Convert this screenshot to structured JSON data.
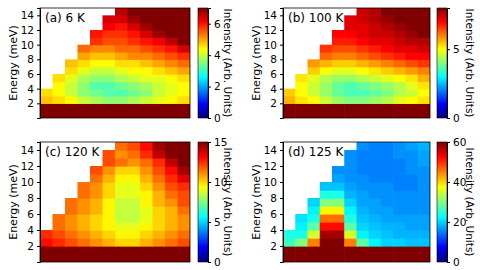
{
  "chart_data": [
    {
      "type": "heatmap",
      "title": "(a) 6 K",
      "y_label": "Energy (meV)",
      "tick_labels": "y",
      "ylim": [
        0,
        15
      ],
      "yticks": [
        2,
        4,
        6,
        8,
        10,
        12,
        14
      ],
      "y_bins": [
        0,
        1,
        2,
        3,
        4,
        5,
        6,
        7,
        8,
        9,
        10,
        11,
        12,
        13,
        14,
        15
      ],
      "colorbar_label": "Intensity (Arb. Units)",
      "colorbar_range": [
        0,
        7
      ],
      "colorbar_ticks": [
        0,
        2,
        4,
        6
      ],
      "cells": [
        [
          12,
          12,
          12,
          12,
          12,
          12,
          12,
          12,
          12,
          12,
          12,
          12
        ],
        [
          12,
          12,
          12,
          12,
          12,
          12,
          12,
          12,
          12,
          12,
          12,
          12
        ],
        [
          4.8,
          4.6,
          4.4,
          4.0,
          3.8,
          3.6,
          3.6,
          3.8,
          4.0,
          4.2,
          4.4,
          4.6
        ],
        [
          4.6,
          4.4,
          4.0,
          3.6,
          3.4,
          3.2,
          3.2,
          3.4,
          3.6,
          4.0,
          4.2,
          4.4
        ],
        [
          null,
          4.4,
          4.0,
          3.6,
          3.2,
          3.2,
          3.4,
          3.6,
          3.8,
          4.0,
          4.2,
          4.4
        ],
        [
          null,
          4.6,
          4.2,
          3.8,
          3.6,
          3.6,
          3.8,
          4.0,
          4.2,
          4.2,
          4.4,
          4.6
        ],
        [
          null,
          null,
          4.6,
          4.2,
          4.0,
          4.0,
          4.2,
          4.4,
          4.4,
          4.6,
          4.8,
          5.0
        ],
        [
          null,
          null,
          4.8,
          4.6,
          4.4,
          4.4,
          4.6,
          4.6,
          4.8,
          5.0,
          5.2,
          5.4
        ],
        [
          null,
          null,
          null,
          5.0,
          4.8,
          4.8,
          5.0,
          5.2,
          5.2,
          5.4,
          5.6,
          5.8
        ],
        [
          null,
          null,
          null,
          5.4,
          5.2,
          5.2,
          5.4,
          5.4,
          5.6,
          5.8,
          6.0,
          6.4
        ],
        [
          null,
          null,
          null,
          null,
          5.8,
          5.6,
          5.6,
          5.8,
          6.0,
          6.2,
          6.6,
          7.0
        ],
        [
          null,
          null,
          null,
          null,
          6.0,
          5.8,
          5.8,
          6.0,
          6.4,
          6.8,
          7.2,
          7.6
        ],
        [
          null,
          null,
          null,
          null,
          null,
          6.2,
          6.0,
          6.4,
          6.8,
          7.4,
          8.0,
          8.5
        ],
        [
          null,
          null,
          null,
          null,
          null,
          6.4,
          6.4,
          6.8,
          7.2,
          7.8,
          8.5,
          9.0
        ],
        [
          null,
          null,
          null,
          null,
          null,
          null,
          6.6,
          7.0,
          7.6,
          8.2,
          9.0,
          9.5
        ]
      ]
    },
    {
      "type": "heatmap",
      "title": "(b) 100 K",
      "y_label": "Energy (meV)",
      "tick_labels": "y",
      "ylim": [
        0,
        15
      ],
      "yticks": [
        2,
        4,
        6,
        8,
        10,
        12,
        14
      ],
      "y_bins": [
        0,
        1,
        2,
        3,
        4,
        5,
        6,
        7,
        8,
        9,
        10,
        11,
        12,
        13,
        14,
        15
      ],
      "colorbar_label": "Intensity (Arb. Units)",
      "colorbar_range": [
        0,
        8
      ],
      "colorbar_ticks": [
        0,
        5
      ],
      "cells": [
        [
          14,
          14,
          14,
          14,
          14,
          14,
          14,
          14,
          14,
          14,
          14,
          14
        ],
        [
          14,
          14,
          14,
          14,
          14,
          14,
          14,
          14,
          14,
          14,
          14,
          14
        ],
        [
          5.6,
          5.2,
          5.0,
          4.6,
          4.2,
          4.0,
          4.0,
          4.2,
          4.4,
          4.8,
          5.0,
          5.2
        ],
        [
          5.4,
          5.0,
          4.6,
          4.2,
          3.8,
          3.6,
          3.6,
          3.8,
          4.0,
          4.4,
          4.6,
          5.0
        ],
        [
          null,
          5.0,
          4.6,
          4.2,
          3.8,
          3.6,
          3.8,
          4.0,
          4.2,
          4.4,
          4.8,
          5.2
        ],
        [
          null,
          5.2,
          4.8,
          4.4,
          4.2,
          4.2,
          4.4,
          4.6,
          4.8,
          5.0,
          5.2,
          5.6
        ],
        [
          null,
          null,
          5.4,
          5.0,
          4.8,
          4.8,
          5.0,
          5.2,
          5.4,
          5.6,
          5.8,
          6.0
        ],
        [
          null,
          null,
          5.8,
          5.6,
          5.4,
          5.4,
          5.6,
          5.8,
          6.0,
          6.2,
          6.4,
          6.6
        ],
        [
          null,
          null,
          null,
          6.2,
          6.0,
          6.0,
          6.2,
          6.4,
          6.6,
          6.8,
          7.0,
          7.0
        ],
        [
          null,
          null,
          null,
          6.6,
          6.4,
          6.4,
          6.6,
          6.8,
          7.0,
          7.2,
          7.2,
          7.4
        ],
        [
          null,
          null,
          null,
          null,
          6.8,
          6.8,
          7.0,
          7.2,
          7.2,
          7.4,
          7.6,
          7.6
        ],
        [
          null,
          null,
          null,
          null,
          7.0,
          7.0,
          7.2,
          7.4,
          7.4,
          7.6,
          7.8,
          8.2
        ],
        [
          null,
          null,
          null,
          null,
          null,
          7.2,
          7.2,
          7.4,
          7.6,
          7.8,
          8.4,
          9.0
        ],
        [
          null,
          null,
          null,
          null,
          null,
          7.2,
          7.4,
          7.6,
          7.8,
          8.2,
          9.0,
          9.5
        ],
        [
          null,
          null,
          null,
          null,
          null,
          null,
          7.4,
          7.6,
          8.0,
          8.6,
          9.4,
          10
        ]
      ]
    },
    {
      "type": "heatmap",
      "title": "(c) 120 K",
      "y_label": "Energy (meV)",
      "tick_labels": "y",
      "ylim": [
        0,
        15
      ],
      "yticks": [
        2,
        4,
        6,
        8,
        10,
        12,
        14
      ],
      "y_bins": [
        0,
        1,
        2,
        3,
        4,
        5,
        6,
        7,
        8,
        9,
        10,
        11,
        12,
        13,
        14,
        15
      ],
      "colorbar_label": "Intensity (Arb. Units)",
      "colorbar_range": [
        0,
        15
      ],
      "colorbar_ticks": [
        0,
        5,
        10,
        15
      ],
      "cells": [
        [
          25,
          25,
          25,
          25,
          25,
          25,
          25,
          25,
          25,
          25,
          25,
          25
        ],
        [
          25,
          25,
          25,
          25,
          25,
          25,
          25,
          25,
          25,
          25,
          25,
          25
        ],
        [
          13,
          12.5,
          12,
          11.5,
          11,
          10.5,
          10,
          10,
          10.5,
          11,
          11.5,
          12
        ],
        [
          12.5,
          12,
          11.5,
          11,
          10.5,
          10,
          9.5,
          9.5,
          10,
          10.5,
          11,
          11.5
        ],
        [
          null,
          11.5,
          11,
          10.5,
          10,
          9.5,
          9,
          9,
          9.5,
          10,
          10.5,
          11
        ],
        [
          null,
          11.5,
          11,
          10.5,
          10,
          9.5,
          8.5,
          8.5,
          9,
          10,
          10.5,
          11
        ],
        [
          null,
          null,
          11.5,
          11,
          10.5,
          9.5,
          8.5,
          8.5,
          9,
          10,
          10.5,
          11.5
        ],
        [
          null,
          null,
          11.5,
          11,
          10.5,
          9.5,
          8.5,
          8.5,
          9.5,
          10.5,
          11,
          12
        ],
        [
          null,
          null,
          null,
          11.5,
          11,
          10,
          9,
          9,
          9.5,
          10.5,
          11.5,
          12
        ],
        [
          null,
          null,
          null,
          11.5,
          11,
          10,
          9,
          9,
          10,
          11,
          12,
          12.5
        ],
        [
          null,
          null,
          null,
          null,
          11.5,
          10.5,
          9.5,
          9.5,
          10.5,
          11.5,
          12.5,
          13.5
        ],
        [
          null,
          null,
          null,
          null,
          12,
          11,
          10,
          10,
          11,
          12,
          13,
          14.5
        ],
        [
          null,
          null,
          null,
          null,
          null,
          12,
          11.5,
          11,
          11.5,
          12.5,
          14,
          16
        ],
        [
          null,
          null,
          null,
          null,
          null,
          12,
          11,
          11.5,
          12.5,
          14,
          16,
          17
        ],
        [
          null,
          null,
          null,
          null,
          null,
          null,
          11.5,
          12,
          13,
          14.5,
          16.5,
          17.5
        ]
      ]
    },
    {
      "type": "heatmap",
      "title": "(d) 125 K",
      "y_label": "Energy (meV)",
      "tick_labels": "y",
      "ylim": [
        0,
        15
      ],
      "yticks": [
        2,
        4,
        6,
        8,
        10,
        12,
        14
      ],
      "y_bins": [
        0,
        1,
        2,
        3,
        4,
        5,
        6,
        7,
        8,
        9,
        10,
        11,
        12,
        13,
        14,
        15
      ],
      "colorbar_label": "Intensity (Arb. Units)",
      "colorbar_range": [
        0,
        60
      ],
      "colorbar_ticks": [
        0,
        20,
        40,
        60
      ],
      "cells": [
        [
          70,
          70,
          70,
          70,
          70,
          70,
          70,
          70,
          70,
          70,
          70,
          70
        ],
        [
          70,
          70,
          70,
          70,
          70,
          70,
          70,
          70,
          70,
          70,
          70,
          70
        ],
        [
          26,
          30,
          45,
          62,
          62,
          45,
          28,
          22,
          20,
          20,
          19,
          19
        ],
        [
          24,
          24,
          35,
          58,
          58,
          35,
          22,
          20,
          19,
          18,
          18,
          18
        ],
        [
          null,
          22,
          28,
          52,
          52,
          28,
          20,
          19,
          18,
          18,
          17,
          17
        ],
        [
          null,
          21,
          24,
          46,
          46,
          24,
          19,
          18,
          17,
          17,
          17,
          17
        ],
        [
          null,
          null,
          22,
          38,
          38,
          22,
          18,
          17,
          17,
          16,
          16,
          16
        ],
        [
          null,
          null,
          20,
          30,
          30,
          20,
          17,
          17,
          16,
          16,
          16,
          16
        ],
        [
          null,
          null,
          null,
          24,
          24,
          18,
          17,
          16,
          16,
          16,
          16,
          16
        ],
        [
          null,
          null,
          null,
          19,
          19,
          17,
          16,
          16,
          16,
          15,
          15,
          16
        ],
        [
          null,
          null,
          null,
          null,
          17,
          16,
          16,
          15,
          15,
          15,
          15,
          16
        ],
        [
          null,
          null,
          null,
          null,
          16,
          16,
          15,
          15,
          15,
          15,
          16,
          16
        ],
        [
          null,
          null,
          null,
          null,
          null,
          16,
          15,
          15,
          15,
          15,
          16,
          17
        ],
        [
          null,
          null,
          null,
          null,
          null,
          16,
          15,
          15,
          15,
          16,
          16,
          17
        ],
        [
          null,
          null,
          null,
          null,
          null,
          null,
          16,
          15,
          15,
          16,
          17,
          18
        ]
      ]
    }
  ]
}
